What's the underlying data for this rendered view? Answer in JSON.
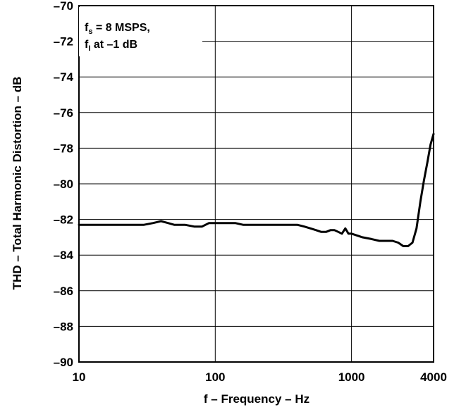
{
  "chart_data": {
    "type": "line",
    "title": "",
    "xlabel": "f – Frequency – Hz",
    "ylabel": "THD – Total Harmonic Distortion – dB",
    "x_scale": "log",
    "xlim": [
      10,
      4000
    ],
    "ylim": [
      -90,
      -70
    ],
    "x_ticks": [
      10,
      100,
      1000,
      4000
    ],
    "x_tick_labels": [
      "10",
      "100",
      "1000",
      "4000"
    ],
    "y_ticks": [
      -70,
      -72,
      -74,
      -76,
      -78,
      -80,
      -82,
      -84,
      -86,
      -88,
      -90
    ],
    "y_tick_labels": [
      "–70",
      "–72",
      "–74",
      "–76",
      "–78",
      "–80",
      "–82",
      "–84",
      "–86",
      "–88",
      "–90"
    ],
    "grid": true,
    "annotation": {
      "line1_main": "f",
      "line1_sub": "s",
      "line1_rest": " = 8 MSPS,",
      "line2_main": "f",
      "line2_sub": "I",
      "line2_rest": " at –1 dB"
    },
    "line_color": "#000000",
    "series": [
      {
        "x": [
          10,
          15,
          20,
          30,
          35,
          40,
          45,
          50,
          60,
          70,
          80,
          90,
          100,
          120,
          140,
          160,
          200,
          300,
          400,
          450,
          500,
          550,
          600,
          650,
          700,
          750,
          800,
          850,
          900,
          950,
          1000,
          1100,
          1200,
          1400,
          1600,
          1800,
          2000,
          2200,
          2400,
          2600,
          2800,
          3000,
          3200,
          3400,
          3600,
          3800,
          4000
        ],
        "y": [
          -82.3,
          -82.3,
          -82.3,
          -82.3,
          -82.2,
          -82.1,
          -82.2,
          -82.3,
          -82.3,
          -82.4,
          -82.4,
          -82.2,
          -82.2,
          -82.2,
          -82.2,
          -82.3,
          -82.3,
          -82.3,
          -82.3,
          -82.4,
          -82.5,
          -82.6,
          -82.7,
          -82.7,
          -82.6,
          -82.6,
          -82.7,
          -82.8,
          -82.5,
          -82.8,
          -82.8,
          -82.9,
          -83.0,
          -83.1,
          -83.2,
          -83.2,
          -83.2,
          -83.3,
          -83.5,
          -83.5,
          -83.3,
          -82.5,
          -81.0,
          -79.8,
          -78.8,
          -77.8,
          -77.2
        ]
      }
    ]
  }
}
